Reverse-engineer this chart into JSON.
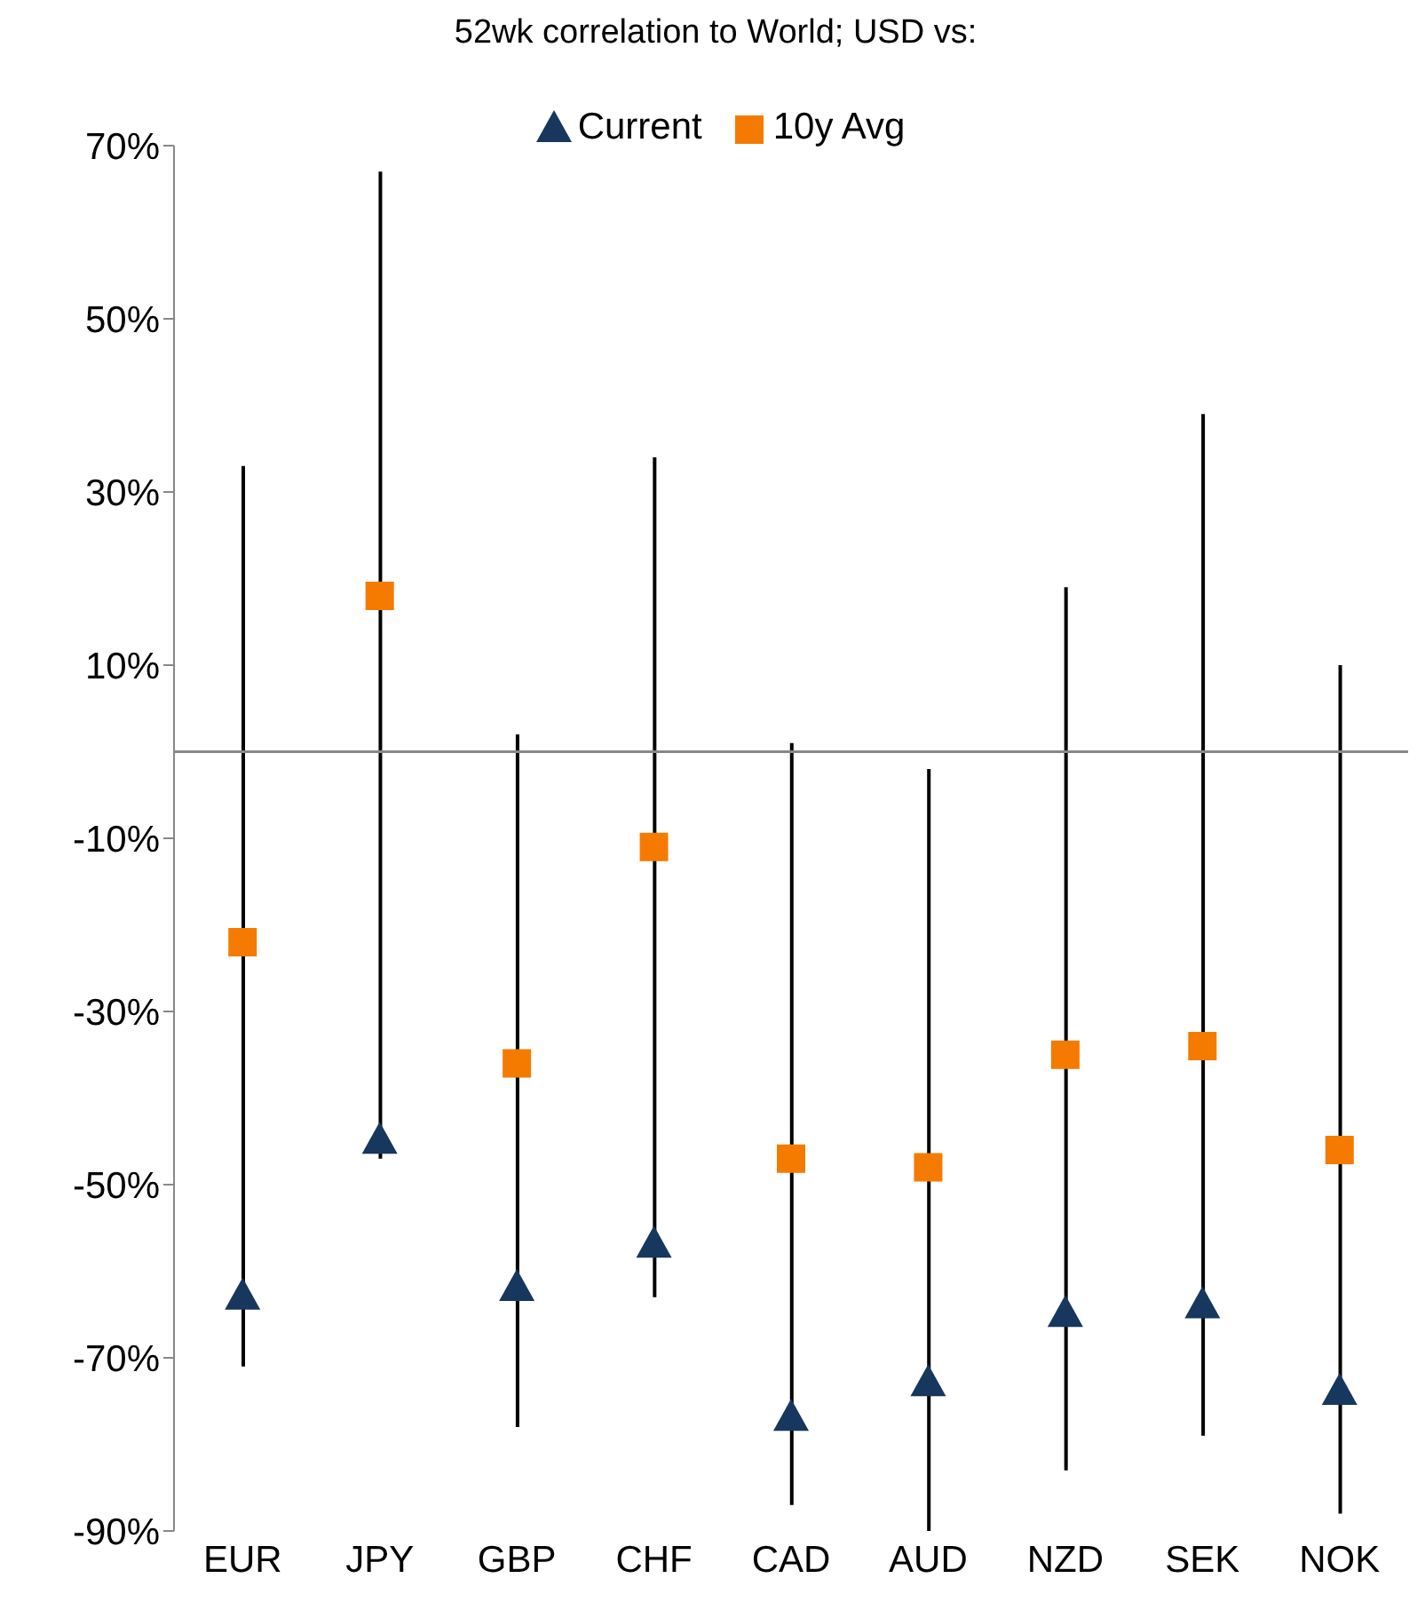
{
  "chart_data": {
    "type": "scatter",
    "title": "52wk correlation to World; USD vs:",
    "categories": [
      "EUR",
      "JPY",
      "GBP",
      "CHF",
      "CAD",
      "AUD",
      "NZD",
      "SEK",
      "NOK"
    ],
    "series": [
      {
        "type": "bar",
        "color": "#000000",
        "base": [
          -71,
          -47,
          -78,
          -63,
          -87,
          -90,
          -83,
          -79,
          -88
        ],
        "values": [
          104,
          114,
          80,
          97,
          88,
          88,
          102,
          118,
          98
        ]
      },
      {
        "name": "Current",
        "color": "#17375e",
        "marker": "triangle",
        "values": [
          -63,
          -45,
          -62,
          -57,
          -77,
          -73,
          -65,
          -64,
          -74
        ]
      },
      {
        "name": "10y Avg",
        "color": "#f47b00",
        "marker": "square",
        "values": [
          -22,
          18,
          -36,
          -11,
          -47,
          -48,
          -35,
          -34,
          -46
        ]
      }
    ],
    "ylim": [
      -90,
      70
    ],
    "yticks": [
      {
        "value": -90,
        "label": "-90%"
      },
      {
        "value": -70,
        "label": "-70%"
      },
      {
        "value": -50,
        "label": "-50%"
      },
      {
        "value": -30,
        "label": "-30%"
      },
      {
        "value": -10,
        "label": "-10%"
      },
      {
        "value": 10,
        "label": "10%"
      },
      {
        "value": 30,
        "label": "30%"
      },
      {
        "value": 50,
        "label": "50%"
      },
      {
        "value": 70,
        "label": "70%"
      }
    ],
    "ref_lines": [
      {
        "axis": "y",
        "value": 0,
        "color": "#888888"
      }
    ],
    "legend": "top"
  }
}
